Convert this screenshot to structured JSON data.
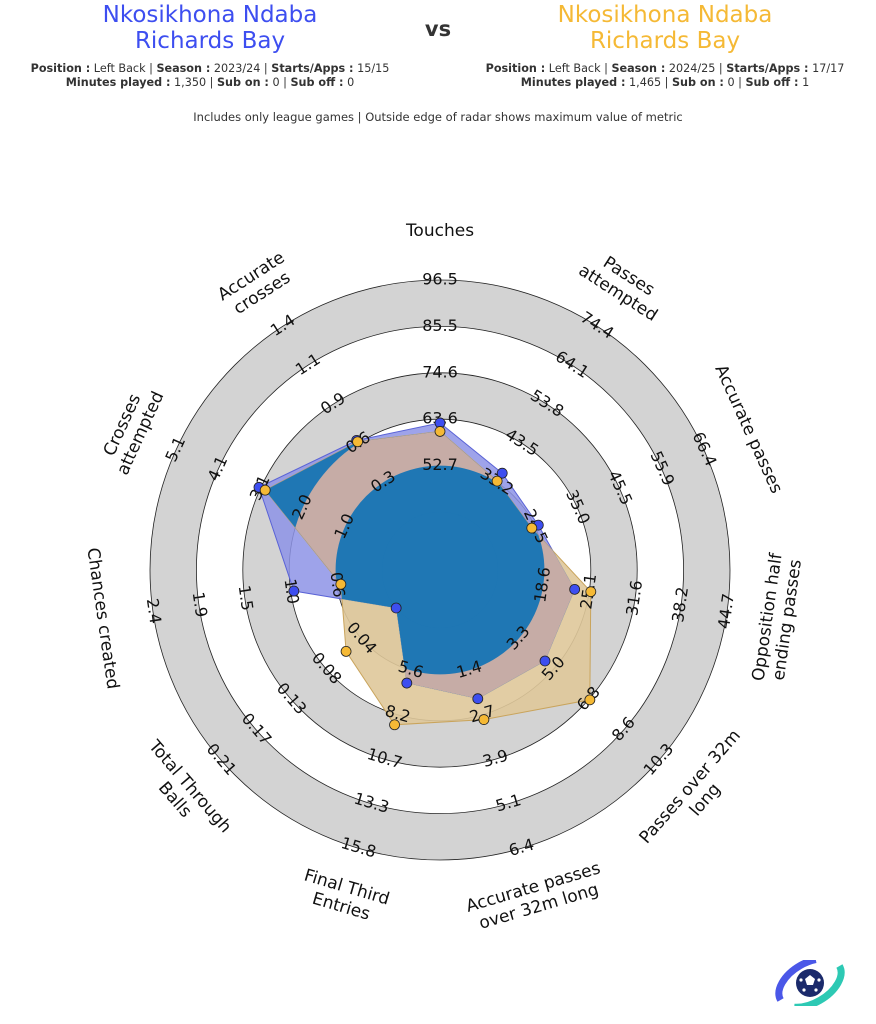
{
  "players": [
    {
      "name": "Nkosikhona Ndaba",
      "team": "Richards Bay",
      "position_label": "Position :",
      "position": "Left Back",
      "season_label": "Season :",
      "season": "2023/24",
      "starts_label": "Starts/Apps :",
      "starts": "15/15",
      "minutes_label": "Minutes played :",
      "minutes": "1,350",
      "subon_label": "Sub on :",
      "subon": "0",
      "suboff_label": "Sub off :",
      "suboff": "0",
      "color": "#3d4ef0"
    },
    {
      "name": "Nkosikhona Ndaba",
      "team": "Richards Bay",
      "position_label": "Position :",
      "position": "Left Back",
      "season_label": "Season :",
      "season": "2024/25",
      "starts_label": "Starts/Apps :",
      "starts": "17/17",
      "minutes_label": "Minutes played :",
      "minutes": "1,465",
      "subon_label": "Sub on :",
      "subon": "0",
      "suboff_label": "Sub off :",
      "suboff": "1",
      "color": "#f5b935"
    }
  ],
  "vs_label": "vs",
  "note": "Includes only league games | Outside edge of radar shows maximum value of metric",
  "chart_data": {
    "type": "radar",
    "ring_colors": {
      "light": "#d3d3d3",
      "dark_fill": "#1f77b4",
      "overlap": "#c6aca6",
      "p1_only": "#8d93e6",
      "p2_only": "#dfc89a"
    },
    "metrics": [
      {
        "label": "Touches",
        "lines": [
          "Touches"
        ],
        "min": 41.8,
        "max": 96.5,
        "ticks": [
          "52.7",
          "63.6",
          "74.6",
          "85.5",
          "96.5"
        ],
        "p1": 62.8,
        "p2": 60.8
      },
      {
        "label": "Passes attempted",
        "lines": [
          "Passes",
          "attempted"
        ],
        "min": 22.8,
        "max": 74.4,
        "ticks": [
          "33.2",
          "43.5",
          "53.8",
          "64.1",
          "74.4"
        ],
        "p1": 35.5,
        "p2": 33.4
      },
      {
        "label": "Accurate passes",
        "lines": [
          "Accurate passes"
        ],
        "min": 14.5,
        "max": 66.4,
        "ticks": [
          "24.5",
          "35.0",
          "45.5",
          "55.9",
          "66.4"
        ],
        "p1": 25.7,
        "p2": 24.1
      },
      {
        "label": "Opposition half ending passes",
        "lines": [
          "Opposition half",
          "ending passes"
        ],
        "min": 12.0,
        "max": 44.7,
        "ticks": [
          "18.6",
          "25.1",
          "31.6",
          "38.2",
          "44.7"
        ],
        "p1": 23.0,
        "p2": 25.3
      },
      {
        "label": "Passes over 32m long",
        "lines": [
          "Passes over 32m",
          "long"
        ],
        "min": 1.7,
        "max": 10.3,
        "ticks": [
          "3.3",
          "5.0",
          "6.8",
          "8.6",
          "10.3"
        ],
        "p1": 4.7,
        "p2": 6.9
      },
      {
        "label": "Accurate passes over 32m long",
        "lines": [
          "Accurate passes",
          "over 32m long"
        ],
        "min": 0.0,
        "max": 6.4,
        "ticks": [
          "1.4",
          "2.7",
          "3.9",
          "5.1",
          "6.4"
        ],
        "p1": 2.1,
        "p2": 2.7
      },
      {
        "label": "Final Third Entries",
        "lines": [
          "Final Third",
          "Entries"
        ],
        "min": 3.0,
        "max": 15.8,
        "ticks": [
          "5.6",
          "8.2",
          "10.7",
          "13.3",
          "15.8"
        ],
        "p1": 6.3,
        "p2": 8.7
      },
      {
        "label": "Total Through Balls",
        "lines": [
          "Total Through",
          "Balls"
        ],
        "min": 0.0,
        "max": 0.21,
        "ticks": [
          "0.04",
          "0.08",
          "0.13",
          "0.17",
          "0.21"
        ],
        "p1": 0.0,
        "p2": 0.06
      },
      {
        "label": "Chances created",
        "lines": [
          "Chances created"
        ],
        "min": 0.2,
        "max": 2.4,
        "ticks": [
          "0.6",
          "1.0",
          "1.5",
          "1.9",
          "2.4"
        ],
        "p1": 1.05,
        "p2": 0.6
      },
      {
        "label": "Crosses attempted",
        "lines": [
          "Crosses",
          "attempted"
        ],
        "min": 0.0,
        "max": 5.1,
        "ticks": [
          "1.0",
          "2.0",
          "3.1",
          "4.1",
          "5.1"
        ],
        "p1": 3.1,
        "p2": 2.95
      },
      {
        "label": "Accurate crosses",
        "lines": [
          "Accurate",
          "crosses"
        ],
        "min": 0.0,
        "max": 1.4,
        "ticks": [
          "0.3",
          "0.6",
          "0.9",
          "1.1",
          "1.4"
        ],
        "p1": 0.58,
        "p2": 0.57
      }
    ]
  }
}
